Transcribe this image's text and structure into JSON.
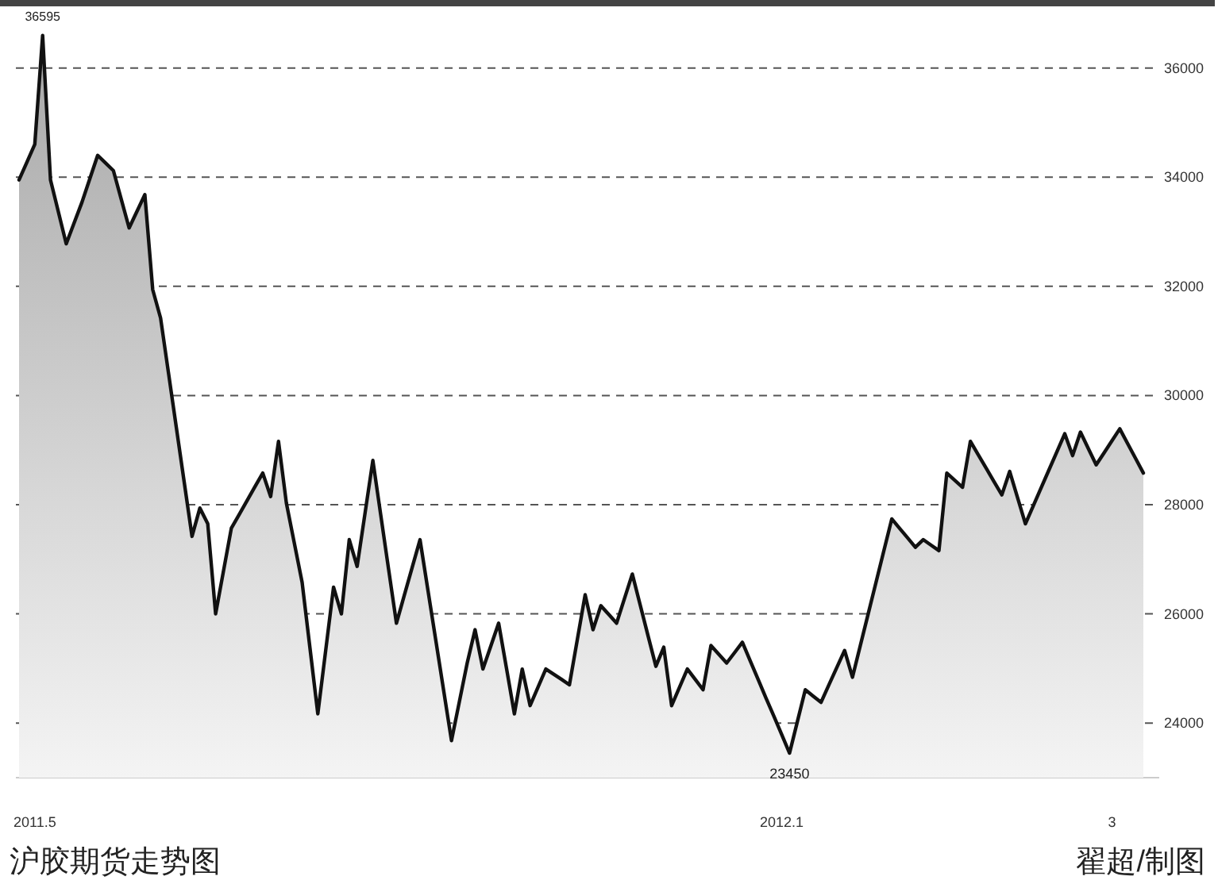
{
  "chart_data": {
    "type": "area",
    "title": "沪胶期货走势图",
    "annotations": [
      {
        "text": "36595",
        "y": 36595
      },
      {
        "text": "23450",
        "y": 23450
      },
      "翟超/制图"
    ],
    "categories": [
      null,
      null,
      "2011.5",
      null,
      null,
      null,
      null,
      null,
      null,
      null,
      null,
      null,
      null,
      null,
      null,
      null,
      null,
      null,
      null,
      null,
      null,
      null,
      null,
      null,
      null,
      null,
      null,
      null,
      null,
      null,
      null,
      null,
      null,
      null,
      null,
      null,
      null,
      null,
      null,
      null,
      null,
      null,
      null,
      null,
      null,
      null,
      null,
      null,
      null,
      null,
      null,
      null,
      null,
      null,
      null,
      null,
      null,
      null,
      null,
      null,
      null,
      null,
      null,
      null,
      null,
      null,
      null,
      null,
      null,
      null,
      null,
      null,
      null,
      null,
      null,
      null,
      null,
      null,
      null,
      null,
      null,
      null,
      null,
      null,
      null,
      null,
      null,
      null,
      null,
      null,
      null,
      null,
      null,
      null,
      null,
      null,
      null,
      "2012.1",
      null,
      null,
      null,
      null,
      null,
      null,
      null,
      null,
      null,
      null,
      null,
      null,
      null,
      null,
      null,
      null,
      null,
      null,
      null,
      null,
      null,
      null,
      null,
      null,
      null,
      null,
      null,
      null,
      null,
      null,
      null,
      null,
      null,
      null,
      null,
      null,
      null,
      null,
      null,
      null,
      null,
      "3",
      null,
      null,
      null,
      null
    ],
    "series": [
      {
        "color": "#111111",
        "values": [
          33950,
          34275,
          34600,
          36595,
          33950,
          33365,
          32780,
          33160,
          33540,
          33970,
          34400,
          34260,
          34120,
          33595,
          33070,
          33375,
          33680,
          31940,
          31420,
          30420,
          29420,
          28420,
          27420,
          27940,
          27650,
          26000,
          26785,
          27570,
          27820,
          28075,
          28330,
          28580,
          28150,
          29160,
          28030,
          27305,
          26580,
          25375,
          24170,
          25330,
          26490,
          26000,
          27360,
          26870,
          27840,
          28810,
          27815,
          26820,
          25830,
          26340,
          26850,
          27360,
          26440,
          25520,
          24600,
          23680,
          24390,
          25100,
          25710,
          24990,
          25410,
          25830,
          25000,
          24170,
          24990,
          24320,
          24655,
          24990,
          24895,
          24800,
          24700,
          25525,
          26350,
          25710,
          26150,
          25990,
          25830,
          26280,
          26730,
          26165,
          25600,
          25040,
          25390,
          24320,
          24655,
          24990,
          24800,
          24610,
          25420,
          25260,
          25100,
          25290,
          25480,
          25140,
          24800,
          24460,
          24130,
          23790,
          23450,
          24030,
          24610,
          24495,
          24380,
          24700,
          25015,
          25330,
          24840,
          25420,
          26000,
          26580,
          27160,
          27740,
          27565,
          27395,
          27220,
          27360,
          27260,
          27160,
          28580,
          28450,
          28320,
          29160,
          28915,
          28670,
          28425,
          28180,
          28610,
          28130,
          27650,
          27980,
          28310,
          28640,
          28970,
          29300,
          28900,
          29330,
          29030,
          28730,
          28950,
          29170,
          29390,
          29120,
          28850,
          28580
        ]
      }
    ],
    "ylim": [
      23000,
      37100
    ],
    "yticks": [
      24000,
      26000,
      28000,
      30000,
      32000,
      34000,
      36000
    ],
    "grid": "y",
    "line_style": "solid",
    "marker": "none"
  }
}
